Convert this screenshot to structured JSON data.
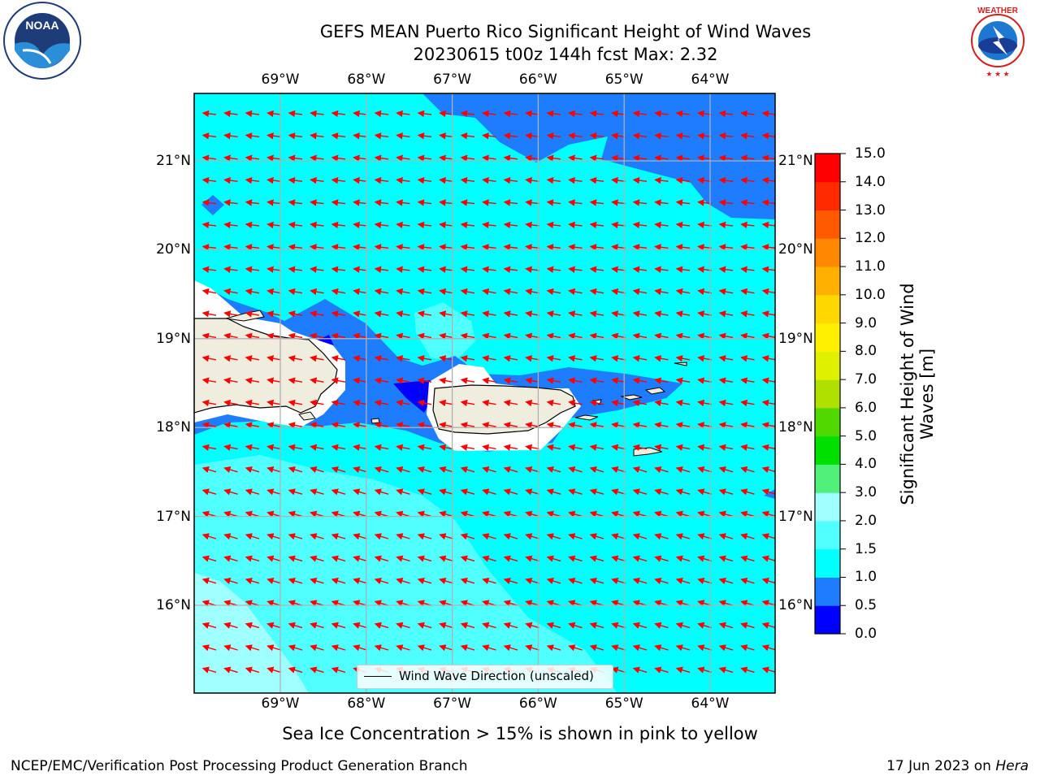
{
  "title": {
    "line1": "GEFS MEAN Puerto Rico Significant Height of Wind Waves",
    "line2": "20230615 t00z 144h fcst   Max: 2.32"
  },
  "logos": {
    "left": "NOAA",
    "right": "NATIONAL WEATHER SERVICE"
  },
  "axes": {
    "lon_ticks": [
      "69°W",
      "68°W",
      "67°W",
      "66°W",
      "65°W",
      "64°W"
    ],
    "lat_ticks": [
      "21°N",
      "20°N",
      "19°N",
      "18°N",
      "17°N",
      "16°N"
    ],
    "lon_range": [
      -70.0,
      -63.25
    ],
    "lat_range": [
      15.0,
      21.75
    ],
    "grid": true
  },
  "legend": {
    "label": "Wind Wave Direction (unscaled)"
  },
  "colorbar": {
    "label": "Significant Height of Wind Waves [m]",
    "ticks": [
      "0.0",
      "0.5",
      "1.0",
      "1.5",
      "2.0",
      "3.0",
      "4.0",
      "5.0",
      "6.0",
      "7.0",
      "8.0",
      "9.0",
      "10.0",
      "11.0",
      "12.0",
      "13.0",
      "14.0",
      "15.0"
    ],
    "colors": [
      "#0000ff",
      "#1e7cff",
      "#00ffff",
      "#50ffff",
      "#a0ffff",
      "#50f07a",
      "#00e000",
      "#50d800",
      "#b0e000",
      "#dff000",
      "#fff000",
      "#ffd800",
      "#ffb000",
      "#ff8800",
      "#ff5a00",
      "#ff2a00",
      "#ff0000"
    ]
  },
  "chart_data": {
    "type": "heatmap",
    "title": "GEFS MEAN Puerto Rico Significant Height of Wind Waves",
    "variable": "Significant Height of Wind Waves [m]",
    "max": 2.32,
    "regions": [
      {
        "name": "northeast open water",
        "range_m": "0.5-1.0"
      },
      {
        "name": "central and north open water",
        "range_m": "1.0-1.5"
      },
      {
        "name": "south / southwest open water",
        "range_m": "1.5-2.0"
      },
      {
        "name": "far southwest corner",
        "range_m": "2.0-3.0"
      },
      {
        "name": "Mona Passage sheltered area",
        "range_m": "0.0-0.5"
      }
    ],
    "arrow_direction": "from east toward west-southwest"
  },
  "note": "Sea Ice Concentration > 15% is shown in pink to yellow",
  "footer": {
    "left": "NCEP/EMC/Verification Post Processing Product Generation Branch",
    "right_prefix": "17 Jun 2023 on ",
    "right_host": "Hera"
  }
}
